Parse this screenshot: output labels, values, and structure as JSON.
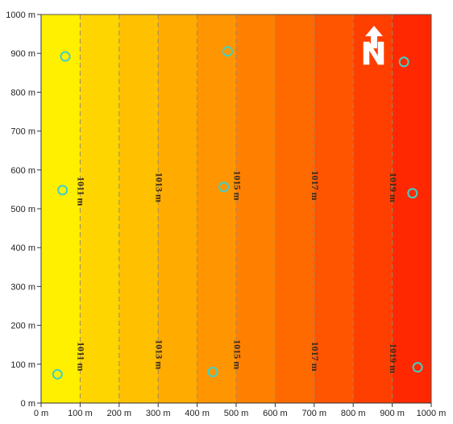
{
  "map": {
    "x_axis": {
      "ticks": [
        {
          "value": 0,
          "label": "0 m"
        },
        {
          "value": 100,
          "label": "100 m"
        },
        {
          "value": 200,
          "label": "200 m"
        },
        {
          "value": 300,
          "label": "300 m"
        },
        {
          "value": 400,
          "label": "400 m"
        },
        {
          "value": 500,
          "label": "500 m"
        },
        {
          "value": 600,
          "label": "600 m"
        },
        {
          "value": 700,
          "label": "700 m"
        },
        {
          "value": 800,
          "label": "800 m"
        },
        {
          "value": 900,
          "label": "900 m"
        },
        {
          "value": 1000,
          "label": "1000 m"
        }
      ],
      "range": [
        0,
        1000
      ]
    },
    "y_axis": {
      "ticks": [
        {
          "value": 0,
          "label": "0 m"
        },
        {
          "value": 100,
          "label": "100 m"
        },
        {
          "value": 200,
          "label": "200 m"
        },
        {
          "value": 300,
          "label": "300 m"
        },
        {
          "value": 400,
          "label": "400 m"
        },
        {
          "value": 500,
          "label": "500 m"
        },
        {
          "value": 600,
          "label": "600 m"
        },
        {
          "value": 700,
          "label": "700 m"
        },
        {
          "value": 800,
          "label": "800 m"
        },
        {
          "value": 900,
          "label": "900 m"
        },
        {
          "value": 1000,
          "label": "1000 m"
        }
      ],
      "range": [
        0,
        1000
      ]
    },
    "color_bands": [
      {
        "from": 0,
        "to": 100,
        "color": "#fff000"
      },
      {
        "from": 100,
        "to": 200,
        "color": "#ffd500"
      },
      {
        "from": 200,
        "to": 300,
        "color": "#ffc000"
      },
      {
        "from": 300,
        "to": 400,
        "color": "#ffab00"
      },
      {
        "from": 400,
        "to": 500,
        "color": "#ff9500"
      },
      {
        "from": 500,
        "to": 600,
        "color": "#ff8000"
      },
      {
        "from": 600,
        "to": 700,
        "color": "#ff6a00"
      },
      {
        "from": 700,
        "to": 800,
        "color": "#ff5500"
      },
      {
        "from": 800,
        "to": 900,
        "color": "#ff3f00"
      },
      {
        "from": 900,
        "to": 1000,
        "color": "#ff2800"
      }
    ],
    "contour_lines": [
      100,
      200,
      300,
      400,
      500,
      600,
      700,
      800,
      900
    ],
    "contour_labels": [
      {
        "text": "1011 m",
        "x": 100,
        "y": 545
      },
      {
        "text": "1011 m",
        "x": 100,
        "y": 120
      },
      {
        "text": "1013 m",
        "x": 300,
        "y": 555
      },
      {
        "text": "1013 m",
        "x": 300,
        "y": 125
      },
      {
        "text": "1015 m",
        "x": 500,
        "y": 560
      },
      {
        "text": "1015 m",
        "x": 500,
        "y": 125
      },
      {
        "text": "1017 m",
        "x": 700,
        "y": 560
      },
      {
        "text": "1017 m",
        "x": 700,
        "y": 120
      },
      {
        "text": "1019 m",
        "x": 900,
        "y": 555
      },
      {
        "text": "1019 m",
        "x": 900,
        "y": 115
      }
    ],
    "stations": [
      {
        "x": 62,
        "y": 892
      },
      {
        "x": 478,
        "y": 905
      },
      {
        "x": 930,
        "y": 878
      },
      {
        "x": 55,
        "y": 548
      },
      {
        "x": 468,
        "y": 556
      },
      {
        "x": 952,
        "y": 540
      },
      {
        "x": 42,
        "y": 74
      },
      {
        "x": 440,
        "y": 80
      },
      {
        "x": 965,
        "y": 92
      }
    ],
    "station_color": "#3fd0c8",
    "north_arrow_label": "N"
  }
}
